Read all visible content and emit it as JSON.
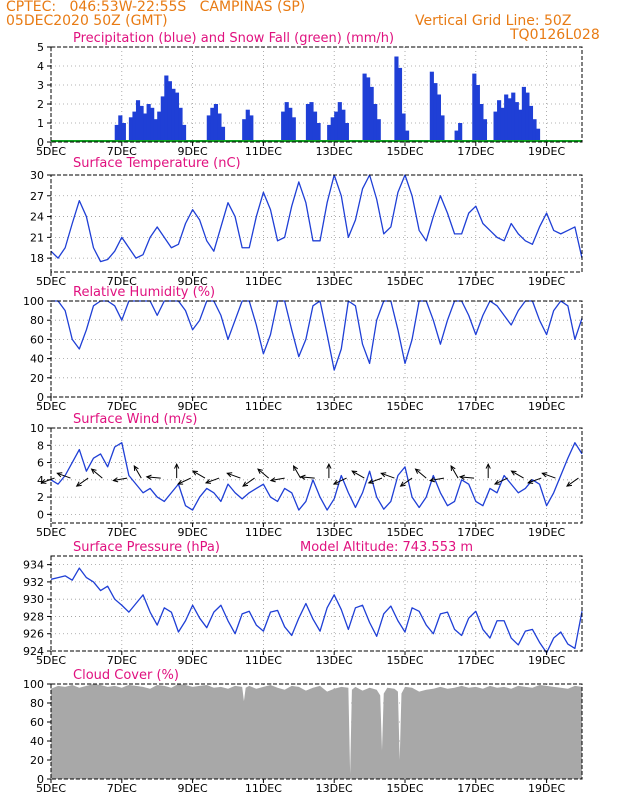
{
  "header": {
    "line1": "CPTEC:   046:53W-22:55S   CAMPINAS (SP)",
    "line2": "05DEC2020 50Z (GMT)",
    "grid_note": "Vertical Grid Line: 50Z",
    "code": "TQ0126L028"
  },
  "colors": {
    "header": "#e87b14",
    "title": "#e0117f",
    "line": "#1f3fd6",
    "snow": "#0fa020",
    "cloud": "#a8a8a8",
    "grid": "#9a9a9a"
  },
  "x_axis": {
    "start_day": 5,
    "end_day": 20,
    "tick_labels": [
      "5DEC",
      "7DEC",
      "9DEC",
      "11DEC",
      "13DEC",
      "15DEC",
      "17DEC",
      "19DEC"
    ],
    "tick_days": [
      5,
      7,
      9,
      11,
      13,
      15,
      17,
      19
    ]
  },
  "chart_data": [
    {
      "type": "bar",
      "title": "Precipitation (blue) and Snow Fall (green) (mm/h)",
      "ylim": [
        0,
        5
      ],
      "yticks": [
        0,
        1,
        2,
        3,
        4,
        5
      ],
      "ytick_labels": [
        "0",
        "1",
        "2",
        "3",
        "4",
        "5"
      ],
      "series": [
        {
          "name": "precipitation",
          "color": "blue",
          "points": [
            [
              6.85,
              0.9
            ],
            [
              6.95,
              1.4
            ],
            [
              7.05,
              1.0
            ],
            [
              7.25,
              1.3
            ],
            [
              7.35,
              1.6
            ],
            [
              7.45,
              2.2
            ],
            [
              7.55,
              1.9
            ],
            [
              7.65,
              1.5
            ],
            [
              7.75,
              2.0
            ],
            [
              7.85,
              1.8
            ],
            [
              7.95,
              1.2
            ],
            [
              8.05,
              1.6
            ],
            [
              8.15,
              2.4
            ],
            [
              8.25,
              3.5
            ],
            [
              8.35,
              3.2
            ],
            [
              8.45,
              2.8
            ],
            [
              8.55,
              2.6
            ],
            [
              8.65,
              1.8
            ],
            [
              8.75,
              0.9
            ],
            [
              9.45,
              1.4
            ],
            [
              9.55,
              1.8
            ],
            [
              9.65,
              2.0
            ],
            [
              9.75,
              1.5
            ],
            [
              9.85,
              0.8
            ],
            [
              10.45,
              1.2
            ],
            [
              10.55,
              1.7
            ],
            [
              10.65,
              1.4
            ],
            [
              11.55,
              1.6
            ],
            [
              11.65,
              2.1
            ],
            [
              11.75,
              1.8
            ],
            [
              11.85,
              1.3
            ],
            [
              12.25,
              2.0
            ],
            [
              12.35,
              2.1
            ],
            [
              12.45,
              1.6
            ],
            [
              12.55,
              1.0
            ],
            [
              12.85,
              0.9
            ],
            [
              12.95,
              1.3
            ],
            [
              13.05,
              1.6
            ],
            [
              13.15,
              2.1
            ],
            [
              13.25,
              1.7
            ],
            [
              13.35,
              1.0
            ],
            [
              13.85,
              3.6
            ],
            [
              13.95,
              3.4
            ],
            [
              14.05,
              2.9
            ],
            [
              14.15,
              2.0
            ],
            [
              14.25,
              1.2
            ],
            [
              14.75,
              4.5
            ],
            [
              14.85,
              3.9
            ],
            [
              14.95,
              1.5
            ],
            [
              15.05,
              0.6
            ],
            [
              15.75,
              3.7
            ],
            [
              15.85,
              3.1
            ],
            [
              15.95,
              2.5
            ],
            [
              16.05,
              1.4
            ],
            [
              16.45,
              0.6
            ],
            [
              16.55,
              1.0
            ],
            [
              16.95,
              3.6
            ],
            [
              17.05,
              3.0
            ],
            [
              17.15,
              2.0
            ],
            [
              17.25,
              1.2
            ],
            [
              17.55,
              1.6
            ],
            [
              17.65,
              2.2
            ],
            [
              17.75,
              1.8
            ],
            [
              17.85,
              2.5
            ],
            [
              17.95,
              2.3
            ],
            [
              18.05,
              2.6
            ],
            [
              18.15,
              2.1
            ],
            [
              18.25,
              1.7
            ],
            [
              18.35,
              2.9
            ],
            [
              18.45,
              2.6
            ],
            [
              18.55,
              1.9
            ],
            [
              18.65,
              1.2
            ],
            [
              18.75,
              0.7
            ]
          ]
        },
        {
          "name": "snow fall",
          "color": "green",
          "points": [
            [
              5.0,
              0.0
            ],
            [
              20.0,
              0.0
            ]
          ]
        }
      ]
    },
    {
      "type": "line",
      "title": "Surface Temperature (nC)",
      "ylim": [
        16,
        30
      ],
      "yticks": [
        18,
        21,
        24,
        27,
        30
      ],
      "ytick_labels": [
        "18",
        "21",
        "24",
        "27",
        "30"
      ],
      "x": [
        5.0,
        5.2,
        5.4,
        5.6,
        5.8,
        6.0,
        6.2,
        6.4,
        6.6,
        6.8,
        7.0,
        7.2,
        7.4,
        7.6,
        7.8,
        8.0,
        8.2,
        8.4,
        8.6,
        8.8,
        9.0,
        9.2,
        9.4,
        9.6,
        9.8,
        10.0,
        10.2,
        10.4,
        10.6,
        10.8,
        11.0,
        11.2,
        11.4,
        11.6,
        11.8,
        12.0,
        12.2,
        12.4,
        12.6,
        12.8,
        13.0,
        13.2,
        13.4,
        13.6,
        13.8,
        14.0,
        14.2,
        14.4,
        14.6,
        14.8,
        15.0,
        15.2,
        15.4,
        15.6,
        15.8,
        16.0,
        16.2,
        16.4,
        16.6,
        16.8,
        17.0,
        17.2,
        17.4,
        17.6,
        17.8,
        18.0,
        18.2,
        18.4,
        18.6,
        18.8,
        19.0,
        19.2,
        19.4,
        19.6,
        19.8,
        20.0
      ],
      "values": [
        19.0,
        18.0,
        19.5,
        23.0,
        26.3,
        24.0,
        19.5,
        17.5,
        17.8,
        19.0,
        21.0,
        19.5,
        18.0,
        18.5,
        21.0,
        22.5,
        21.0,
        19.5,
        20.0,
        23.0,
        25.0,
        23.5,
        20.5,
        19.0,
        22.5,
        26.0,
        24.0,
        19.5,
        19.5,
        24.0,
        27.5,
        25.0,
        20.5,
        21.0,
        25.5,
        29.0,
        26.0,
        20.5,
        20.5,
        26.0,
        30.0,
        27.0,
        21.0,
        23.5,
        28.0,
        30.0,
        26.5,
        21.5,
        22.5,
        27.5,
        30.0,
        27.0,
        22.0,
        20.5,
        24.0,
        27.0,
        24.5,
        21.5,
        21.5,
        24.5,
        25.5,
        23.0,
        22.0,
        21.0,
        20.5,
        23.0,
        21.5,
        20.5,
        20.0,
        22.5,
        24.5,
        22.0,
        21.5,
        22.0,
        22.5,
        18.0
      ]
    },
    {
      "type": "line",
      "title": "Relative Humidity (%)",
      "ylim": [
        0,
        100
      ],
      "yticks": [
        0,
        20,
        40,
        60,
        80,
        100
      ],
      "ytick_labels": [
        "0",
        "20",
        "40",
        "60",
        "80",
        "100"
      ],
      "x": [
        5.0,
        5.2,
        5.4,
        5.6,
        5.8,
        6.0,
        6.2,
        6.4,
        6.6,
        6.8,
        7.0,
        7.2,
        7.4,
        7.6,
        7.8,
        8.0,
        8.2,
        8.4,
        8.6,
        8.8,
        9.0,
        9.2,
        9.4,
        9.6,
        9.8,
        10.0,
        10.2,
        10.4,
        10.6,
        10.8,
        11.0,
        11.2,
        11.4,
        11.6,
        11.8,
        12.0,
        12.2,
        12.4,
        12.6,
        12.8,
        13.0,
        13.2,
        13.4,
        13.6,
        13.8,
        14.0,
        14.2,
        14.4,
        14.6,
        14.8,
        15.0,
        15.2,
        15.4,
        15.6,
        15.8,
        16.0,
        16.2,
        16.4,
        16.6,
        16.8,
        17.0,
        17.2,
        17.4,
        17.6,
        17.8,
        18.0,
        18.2,
        18.4,
        18.6,
        18.8,
        19.0,
        19.2,
        19.4,
        19.6,
        19.8,
        20.0
      ],
      "values": [
        100,
        100,
        90,
        60,
        50,
        70,
        95,
        100,
        100,
        95,
        80,
        100,
        100,
        100,
        100,
        85,
        100,
        100,
        100,
        90,
        70,
        80,
        100,
        100,
        85,
        60,
        80,
        100,
        100,
        75,
        45,
        65,
        100,
        100,
        70,
        42,
        60,
        95,
        100,
        65,
        28,
        50,
        100,
        95,
        55,
        35,
        80,
        100,
        100,
        70,
        35,
        60,
        100,
        100,
        80,
        55,
        80,
        100,
        100,
        85,
        65,
        85,
        100,
        95,
        85,
        75,
        90,
        100,
        100,
        80,
        65,
        90,
        100,
        95,
        60,
        82
      ]
    },
    {
      "type": "line",
      "title": "Surface Wind (m/s)",
      "ylim": [
        -1,
        10
      ],
      "yticks": [
        0,
        2,
        4,
        6,
        8,
        10
      ],
      "ytick_labels": [
        "0",
        "2",
        "4",
        "6",
        "8",
        "10"
      ],
      "x": [
        5.0,
        5.2,
        5.4,
        5.6,
        5.8,
        6.0,
        6.2,
        6.4,
        6.6,
        6.8,
        7.0,
        7.2,
        7.4,
        7.6,
        7.8,
        8.0,
        8.2,
        8.4,
        8.6,
        8.8,
        9.0,
        9.2,
        9.4,
        9.6,
        9.8,
        10.0,
        10.2,
        10.4,
        10.6,
        10.8,
        11.0,
        11.2,
        11.4,
        11.6,
        11.8,
        12.0,
        12.2,
        12.4,
        12.6,
        12.8,
        13.0,
        13.2,
        13.4,
        13.6,
        13.8,
        14.0,
        14.2,
        14.4,
        14.6,
        14.8,
        15.0,
        15.2,
        15.4,
        15.6,
        15.8,
        16.0,
        16.2,
        16.4,
        16.6,
        16.8,
        17.0,
        17.2,
        17.4,
        17.6,
        17.8,
        18.0,
        18.2,
        18.4,
        18.6,
        18.8,
        19.0,
        19.2,
        19.4,
        19.6,
        19.8,
        20.0
      ],
      "values": [
        4.0,
        3.5,
        4.5,
        6.0,
        7.5,
        5.0,
        6.5,
        7.0,
        5.5,
        7.8,
        8.3,
        4.5,
        3.5,
        2.5,
        3.0,
        2.0,
        1.5,
        2.5,
        3.5,
        1.0,
        0.5,
        2.0,
        3.0,
        2.5,
        1.5,
        3.5,
        2.5,
        1.8,
        2.5,
        3.0,
        3.5,
        2.0,
        1.5,
        3.0,
        2.5,
        0.5,
        1.5,
        4.0,
        2.0,
        0.5,
        1.8,
        4.5,
        2.5,
        0.8,
        2.5,
        5.0,
        2.0,
        0.6,
        1.5,
        4.5,
        5.5,
        2.0,
        0.8,
        2.0,
        4.5,
        2.5,
        1.0,
        1.5,
        4.0,
        3.5,
        1.5,
        1.0,
        3.0,
        2.5,
        4.5,
        3.5,
        2.5,
        3.0,
        4.0,
        3.5,
        1.0,
        2.5,
        4.5,
        6.5,
        8.3,
        7.0
      ],
      "arrow_days": [
        5.1,
        5.55,
        6.05,
        6.45,
        7.15,
        7.55,
        8.1,
        8.55,
        8.95,
        9.35,
        9.75,
        10.35,
        10.75,
        11.15,
        11.6,
        12.05,
        12.45,
        12.85,
        13.35,
        13.85,
        14.35,
        14.7,
        15.2,
        15.6,
        16.1,
        16.5,
        16.95,
        17.35,
        17.9,
        18.35,
        18.85,
        19.25,
        19.9
      ]
    },
    {
      "type": "line",
      "title": "Surface Pressure (hPa)",
      "model_altitude": "Model Altitude: 743.553 m",
      "ylim": [
        924,
        935
      ],
      "yticks": [
        924,
        926,
        928,
        930,
        932,
        934
      ],
      "ytick_labels": [
        "924",
        "926",
        "928",
        "930",
        "932",
        "934"
      ],
      "x": [
        5.0,
        5.2,
        5.4,
        5.6,
        5.8,
        6.0,
        6.2,
        6.4,
        6.6,
        6.8,
        7.0,
        7.2,
        7.4,
        7.6,
        7.8,
        8.0,
        8.2,
        8.4,
        8.6,
        8.8,
        9.0,
        9.2,
        9.4,
        9.6,
        9.8,
        10.0,
        10.2,
        10.4,
        10.6,
        10.8,
        11.0,
        11.2,
        11.4,
        11.6,
        11.8,
        12.0,
        12.2,
        12.4,
        12.6,
        12.8,
        13.0,
        13.2,
        13.4,
        13.6,
        13.8,
        14.0,
        14.2,
        14.4,
        14.6,
        14.8,
        15.0,
        15.2,
        15.4,
        15.6,
        15.8,
        16.0,
        16.2,
        16.4,
        16.6,
        16.8,
        17.0,
        17.2,
        17.4,
        17.6,
        17.8,
        18.0,
        18.2,
        18.4,
        18.6,
        18.8,
        19.0,
        19.2,
        19.4,
        19.6,
        19.8,
        20.0
      ],
      "values": [
        932.3,
        932.5,
        932.7,
        932.2,
        933.6,
        932.5,
        932.0,
        931.0,
        931.5,
        930.0,
        929.3,
        928.5,
        929.5,
        930.5,
        928.5,
        927.0,
        929.0,
        928.5,
        926.2,
        927.5,
        929.3,
        927.8,
        926.7,
        928.5,
        929.3,
        927.5,
        926.0,
        928.3,
        928.6,
        927.0,
        926.3,
        928.5,
        928.7,
        926.8,
        925.8,
        927.8,
        929.5,
        927.7,
        926.3,
        929.0,
        930.5,
        928.8,
        926.5,
        929.0,
        929.3,
        927.3,
        925.7,
        928.3,
        929.2,
        927.5,
        926.2,
        929.0,
        928.6,
        927.0,
        926.0,
        928.3,
        928.5,
        926.5,
        925.8,
        927.8,
        928.6,
        926.5,
        925.5,
        927.5,
        927.5,
        925.5,
        924.7,
        926.3,
        926.5,
        925.0,
        923.8,
        925.5,
        926.2,
        924.8,
        924.3,
        928.6
      ]
    },
    {
      "type": "area",
      "title": "Cloud Cover (%)",
      "ylim": [
        0,
        100
      ],
      "yticks": [
        0,
        20,
        40,
        60,
        80,
        100
      ],
      "ytick_labels": [
        "0",
        "20",
        "40",
        "60",
        "80",
        "100"
      ],
      "x": [
        5.0,
        5.2,
        5.4,
        5.6,
        5.8,
        6.0,
        6.2,
        6.4,
        6.6,
        6.8,
        7.0,
        7.2,
        7.4,
        7.6,
        7.8,
        8.0,
        8.2,
        8.4,
        8.6,
        8.8,
        9.0,
        9.2,
        9.4,
        9.6,
        9.8,
        10.0,
        10.2,
        10.4,
        10.45,
        10.5,
        10.6,
        10.8,
        11.0,
        11.2,
        11.4,
        11.6,
        11.8,
        12.0,
        12.2,
        12.4,
        12.6,
        12.8,
        13.0,
        13.2,
        13.4,
        13.45,
        13.5,
        13.6,
        13.8,
        14.0,
        14.2,
        14.3,
        14.35,
        14.4,
        14.5,
        14.7,
        14.8,
        14.85,
        14.9,
        15.0,
        15.2,
        15.4,
        15.6,
        15.8,
        16.0,
        16.2,
        16.4,
        16.6,
        16.8,
        17.0,
        17.2,
        17.4,
        17.6,
        17.8,
        18.0,
        18.2,
        18.4,
        18.6,
        18.8,
        19.0,
        19.2,
        19.4,
        19.6,
        19.8,
        20.0
      ],
      "values": [
        95,
        98,
        97,
        99,
        96,
        98,
        100,
        99,
        97,
        98,
        96,
        99,
        98,
        97,
        95,
        99,
        98,
        96,
        100,
        99,
        97,
        98,
        99,
        96,
        97,
        95,
        98,
        97,
        82,
        96,
        98,
        95,
        97,
        99,
        96,
        94,
        98,
        97,
        93,
        96,
        98,
        92,
        95,
        97,
        96,
        5,
        94,
        97,
        93,
        96,
        94,
        88,
        30,
        90,
        96,
        95,
        92,
        20,
        90,
        97,
        96,
        92,
        94,
        95,
        97,
        95,
        96,
        98,
        96,
        97,
        95,
        98,
        96,
        97,
        95,
        98,
        97,
        96,
        99,
        98,
        97,
        96,
        95,
        98,
        97
      ]
    }
  ]
}
